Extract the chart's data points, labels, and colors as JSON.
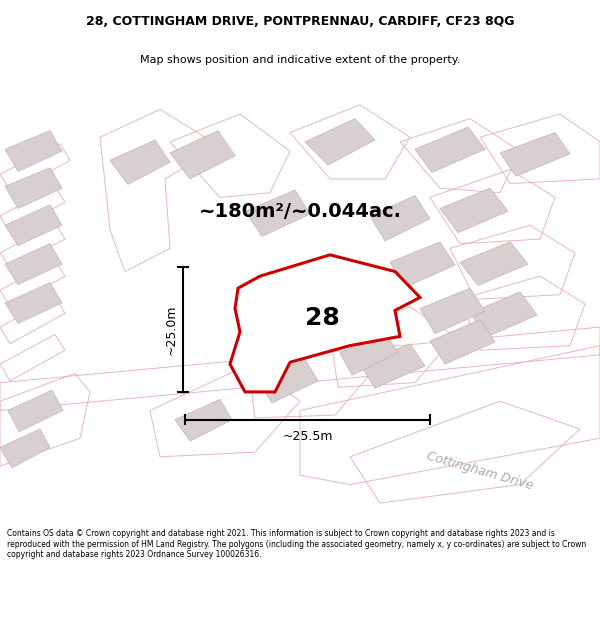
{
  "title_line1": "28, COTTINGHAM DRIVE, PONTPRENNAU, CARDIFF, CF23 8QG",
  "title_line2": "Map shows position and indicative extent of the property.",
  "area_text": "~180m²/~0.044ac.",
  "number_label": "28",
  "dim_horizontal": "~25.5m",
  "dim_vertical": "~25.0m",
  "street_label": "Cottingham Drive",
  "footer_text": "Contains OS data © Crown copyright and database right 2021. This information is subject to Crown copyright and database rights 2023 and is reproduced with the permission of HM Land Registry. The polygons (including the associated geometry, namely x, y co-ordinates) are subject to Crown copyright and database rights 2023 Ordnance Survey 100026316.",
  "map_bg": "#faf8f8",
  "road_stroke": "#e8b8b8",
  "bldg_fill": "#d8d0d0",
  "bldg_stroke": "#c8b0b0",
  "highlight_stroke": "#cc0000",
  "highlight_fill": "#ffffff",
  "text_color": "#000000",
  "footer_bg": "#ffffff",
  "title_bg": "#ffffff",
  "street_text_color": "#aaaaaa",
  "title_fontsize": 9,
  "subtitle_fontsize": 8,
  "area_fontsize": 14,
  "num_fontsize": 18,
  "dim_fontsize": 9,
  "street_fontsize": 9,
  "footer_fontsize": 5.5
}
